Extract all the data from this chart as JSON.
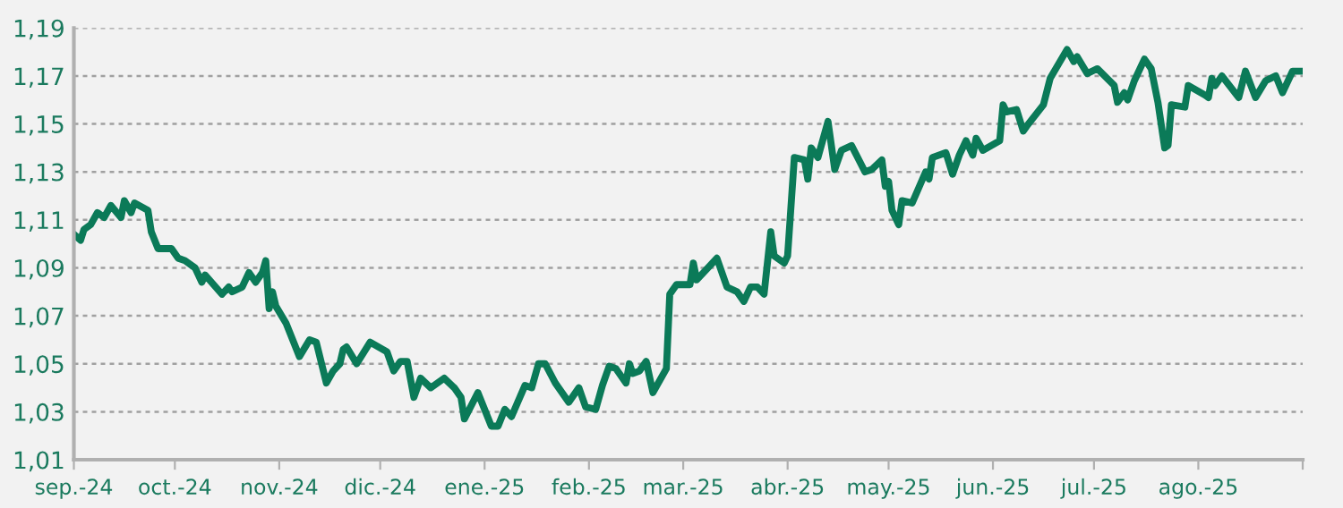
{
  "chart_data": {
    "type": "line",
    "x": [
      "2024-09-01",
      "2024-09-03",
      "2024-09-04",
      "2024-09-06",
      "2024-09-08",
      "2024-09-10",
      "2024-09-12",
      "2024-09-15",
      "2024-09-16",
      "2024-09-18",
      "2024-09-19",
      "2024-09-23",
      "2024-09-24",
      "2024-09-26",
      "2024-09-30",
      "2024-10-02",
      "2024-10-04",
      "2024-10-07",
      "2024-10-09",
      "2024-10-10",
      "2024-10-15",
      "2024-10-17",
      "2024-10-18",
      "2024-10-21",
      "2024-10-23",
      "2024-10-25",
      "2024-10-27",
      "2024-10-28",
      "2024-10-29",
      "2024-10-30",
      "2024-10-31",
      "2024-11-03",
      "2024-11-07",
      "2024-11-10",
      "2024-11-12",
      "2024-11-15",
      "2024-11-17",
      "2024-11-19",
      "2024-11-20",
      "2024-11-21",
      "2024-11-24",
      "2024-11-28",
      "2024-12-03",
      "2024-12-05",
      "2024-12-07",
      "2024-12-09",
      "2024-12-11",
      "2024-12-13",
      "2024-12-16",
      "2024-12-20",
      "2024-12-23",
      "2024-12-25",
      "2024-12-26",
      "2024-12-30",
      "2025-01-03",
      "2025-01-05",
      "2025-01-07",
      "2025-01-09",
      "2025-01-13",
      "2025-01-15",
      "2025-01-17",
      "2025-01-19",
      "2025-01-22",
      "2025-01-26",
      "2025-01-29",
      "2025-01-31",
      "2025-02-03",
      "2025-02-05",
      "2025-02-07",
      "2025-02-09",
      "2025-02-12",
      "2025-02-13",
      "2025-02-14",
      "2025-02-16",
      "2025-02-18",
      "2025-02-20",
      "2025-02-24",
      "2025-02-25",
      "2025-02-27",
      "2025-03-03",
      "2025-03-04",
      "2025-03-05",
      "2025-03-11",
      "2025-03-14",
      "2025-03-17",
      "2025-03-19",
      "2025-03-21",
      "2025-03-23",
      "2025-03-25",
      "2025-03-27",
      "2025-03-28",
      "2025-03-31",
      "2025-04-01",
      "2025-04-03",
      "2025-04-06",
      "2025-04-07",
      "2025-04-08",
      "2025-04-10",
      "2025-04-13",
      "2025-04-15",
      "2025-04-17",
      "2025-04-20",
      "2025-04-24",
      "2025-04-26",
      "2025-04-29",
      "2025-04-30",
      "2025-05-01",
      "2025-05-02",
      "2025-05-04",
      "2025-05-05",
      "2025-05-08",
      "2025-05-12",
      "2025-05-13",
      "2025-05-14",
      "2025-05-18",
      "2025-05-20",
      "2025-05-22",
      "2025-05-24",
      "2025-05-26",
      "2025-05-27",
      "2025-05-29",
      "2025-06-03",
      "2025-06-04",
      "2025-06-05",
      "2025-06-08",
      "2025-06-10",
      "2025-06-11",
      "2025-06-16",
      "2025-06-18",
      "2025-06-23",
      "2025-06-25",
      "2025-06-26",
      "2025-06-29",
      "2025-07-02",
      "2025-07-07",
      "2025-07-08",
      "2025-07-10",
      "2025-07-11",
      "2025-07-13",
      "2025-07-16",
      "2025-07-18",
      "2025-07-20",
      "2025-07-22",
      "2025-07-23",
      "2025-07-24",
      "2025-07-28",
      "2025-07-29",
      "2025-08-03",
      "2025-08-04",
      "2025-08-05",
      "2025-08-06",
      "2025-08-08",
      "2025-08-13",
      "2025-08-15",
      "2025-08-18",
      "2025-08-21",
      "2025-08-24",
      "2025-08-26",
      "2025-08-27",
      "2025-08-29",
      "2025-08-31"
    ],
    "series": [
      {
        "color": "#0b7a58",
        "values": [
          1.104,
          1.1015,
          1.106,
          1.108,
          1.113,
          1.111,
          1.116,
          1.111,
          1.118,
          1.113,
          1.117,
          1.114,
          1.105,
          1.098,
          1.098,
          1.094,
          1.093,
          1.09,
          1.084,
          1.087,
          1.079,
          1.082,
          1.08,
          1.082,
          1.088,
          1.084,
          1.088,
          1.093,
          1.073,
          1.08,
          1.074,
          1.067,
          1.053,
          1.06,
          1.059,
          1.042,
          1.047,
          1.05,
          1.056,
          1.057,
          1.05,
          1.059,
          1.055,
          1.047,
          1.051,
          1.051,
          1.036,
          1.044,
          1.04,
          1.044,
          1.04,
          1.036,
          1.027,
          1.038,
          1.024,
          1.024,
          1.031,
          1.028,
          1.041,
          1.04,
          1.05,
          1.05,
          1.042,
          1.034,
          1.04,
          1.032,
          1.031,
          1.041,
          1.049,
          1.048,
          1.042,
          1.05,
          1.046,
          1.047,
          1.051,
          1.038,
          1.048,
          1.079,
          1.083,
          1.083,
          1.092,
          1.085,
          1.094,
          1.082,
          1.08,
          1.076,
          1.082,
          1.082,
          1.079,
          1.105,
          1.095,
          1.092,
          1.095,
          1.136,
          1.135,
          1.127,
          1.14,
          1.136,
          1.151,
          1.131,
          1.139,
          1.141,
          1.13,
          1.131,
          1.135,
          1.124,
          1.126,
          1.114,
          1.108,
          1.118,
          1.117,
          1.13,
          1.127,
          1.136,
          1.138,
          1.129,
          1.137,
          1.143,
          1.137,
          1.144,
          1.139,
          1.143,
          1.158,
          1.155,
          1.156,
          1.147,
          1.149,
          1.158,
          1.169,
          1.181,
          1.176,
          1.178,
          1.171,
          1.173,
          1.166,
          1.159,
          1.163,
          1.16,
          1.168,
          1.177,
          1.173,
          1.159,
          1.14,
          1.141,
          1.158,
          1.157,
          1.166,
          1.162,
          1.161,
          1.169,
          1.166,
          1.17,
          1.161,
          1.172,
          1.161,
          1.168,
          1.17,
          1.163,
          1.166,
          1.172,
          1.172
        ]
      }
    ],
    "xlim": [
      "2024-09-01",
      "2025-09-01"
    ],
    "xticks": [
      {
        "value": "2024-09-01",
        "label": "sep.-24"
      },
      {
        "value": "2024-10-01",
        "label": "oct.-24"
      },
      {
        "value": "2024-11-01",
        "label": "nov.-24"
      },
      {
        "value": "2024-12-01",
        "label": "dic.-24"
      },
      {
        "value": "2025-01-01",
        "label": "ene.-25"
      },
      {
        "value": "2025-02-01",
        "label": "feb.-25"
      },
      {
        "value": "2025-03-01",
        "label": "mar.-25"
      },
      {
        "value": "2025-04-01",
        "label": "abr.-25"
      },
      {
        "value": "2025-05-01",
        "label": "may.-25"
      },
      {
        "value": "2025-06-01",
        "label": "jun.-25"
      },
      {
        "value": "2025-07-01",
        "label": "jul.-25"
      },
      {
        "value": "2025-08-01",
        "label": "ago.-25"
      },
      {
        "value": "2025-09-01",
        "label": null
      }
    ],
    "ylim": [
      1.01,
      1.19
    ],
    "yticks": [
      {
        "value": 1.01,
        "label": "1,01"
      },
      {
        "value": 1.03,
        "label": "1,03"
      },
      {
        "value": 1.05,
        "label": "1,05"
      },
      {
        "value": 1.07,
        "label": "1,07"
      },
      {
        "value": 1.09,
        "label": "1,09"
      },
      {
        "value": 1.11,
        "label": "1,11"
      },
      {
        "value": 1.13,
        "label": "1,13"
      },
      {
        "value": 1.15,
        "label": "1,15"
      },
      {
        "value": 1.17,
        "label": "1,17"
      },
      {
        "value": 1.19,
        "label": "1,19"
      }
    ],
    "grid": "y",
    "legend": false,
    "line_style": "solid",
    "marker": "none"
  }
}
